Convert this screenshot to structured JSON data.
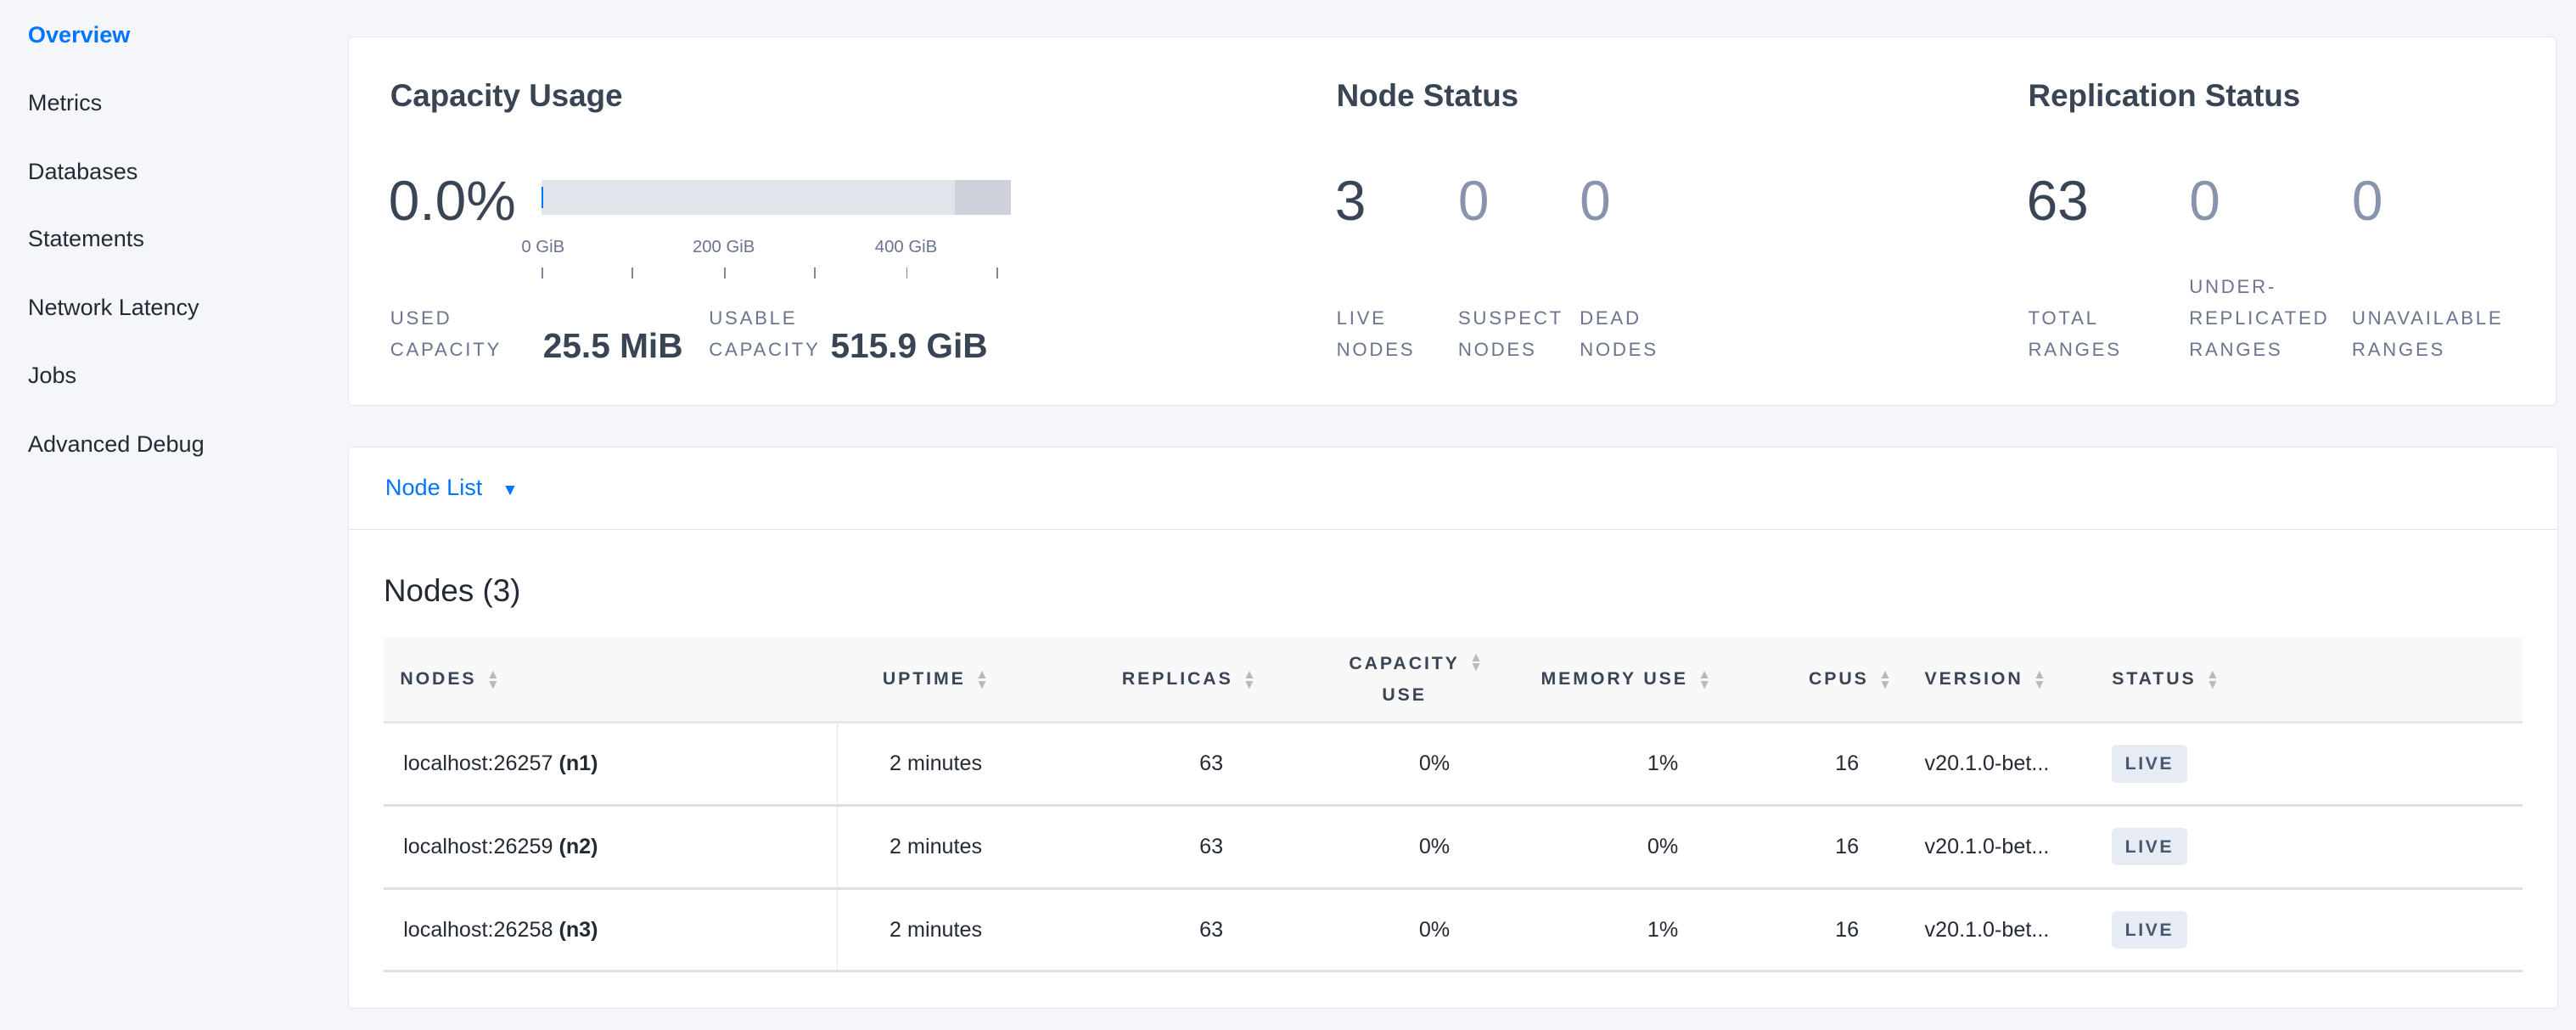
{
  "sidebar": {
    "items": [
      {
        "label": "Overview",
        "active": true
      },
      {
        "label": "Metrics"
      },
      {
        "label": "Databases"
      },
      {
        "label": "Statements"
      },
      {
        "label": "Network Latency"
      },
      {
        "label": "Jobs"
      },
      {
        "label": "Advanced Debug"
      }
    ]
  },
  "capacity": {
    "title": "Capacity Usage",
    "percent": "0.0%",
    "used_fraction": 0.0,
    "usable_fraction_of_scale": 0.88,
    "ticks": [
      "0 GiB",
      "200 GiB",
      "400 GiB"
    ],
    "used_label_1": "USED",
    "used_label_2": "CAPACITY",
    "used_value": "25.5 MiB",
    "usable_label_1": "USABLE",
    "usable_label_2": "CAPACITY",
    "usable_value": "515.9 GiB"
  },
  "node_status": {
    "title": "Node Status",
    "live": "3",
    "live_l1": "LIVE",
    "live_l2": "NODES",
    "suspect": "0",
    "suspect_l1": "SUSPECT",
    "suspect_l2": "NODES",
    "dead": "0",
    "dead_l1": "DEAD",
    "dead_l2": "NODES"
  },
  "replication": {
    "title": "Replication Status",
    "total": "63",
    "total_l1": "TOTAL",
    "total_l2": "RANGES",
    "under": "0",
    "under_l1": "UNDER-",
    "under_l2": "REPLICATED",
    "under_l3": "RANGES",
    "unavail": "0",
    "unavail_l1": "UNAVAILABLE",
    "unavail_l2": "RANGES"
  },
  "node_list": {
    "dropdown": "Node List",
    "title": "Nodes (3)",
    "columns": [
      "NODES",
      "UPTIME",
      "REPLICAS",
      "CAPACITY",
      "USE",
      "MEMORY USE",
      "CPUS",
      "VERSION",
      "STATUS"
    ],
    "rows": [
      {
        "host": "localhost:26257",
        "id": "(n1)",
        "uptime": "2 minutes",
        "replicas": "63",
        "capacity": "0%",
        "memory": "1%",
        "cpus": "16",
        "version": "v20.1.0-bet...",
        "status": "LIVE"
      },
      {
        "host": "localhost:26259",
        "id": "(n2)",
        "uptime": "2 minutes",
        "replicas": "63",
        "capacity": "0%",
        "memory": "0%",
        "cpus": "16",
        "version": "v20.1.0-bet...",
        "status": "LIVE"
      },
      {
        "host": "localhost:26258",
        "id": "(n3)",
        "uptime": "2 minutes",
        "replicas": "63",
        "capacity": "0%",
        "memory": "1%",
        "cpus": "16",
        "version": "v20.1.0-bet...",
        "status": "LIVE"
      }
    ]
  },
  "colors": {
    "accent": "#0075ff",
    "text": "#394455",
    "badge_bg": "#e7ebf3"
  }
}
